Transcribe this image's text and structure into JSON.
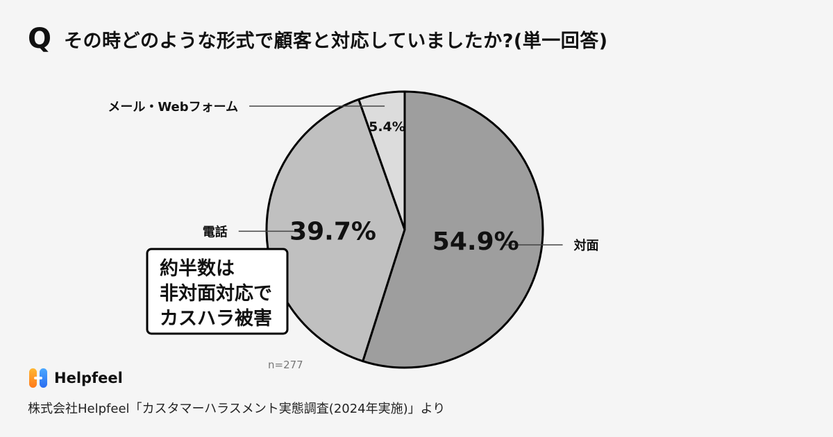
{
  "title": {
    "q_mark": "Q",
    "text": "その時どのような形式で顧客と対応していましたか?(単一回答)"
  },
  "chart_data": {
    "type": "pie",
    "categories": [
      "対面",
      "電話",
      "メール・Webフォーム"
    ],
    "values": [
      54.9,
      39.7,
      5.4
    ],
    "value_labels": [
      "54.9%",
      "39.7%",
      "5.4%"
    ],
    "colors": [
      "#9e9e9e",
      "#c0c0c0",
      "#dcdcdc"
    ],
    "sample_size": "n=277"
  },
  "callout": {
    "lines": [
      "約半数は",
      "非対面対応で",
      "カスハラ被害"
    ]
  },
  "footer": {
    "brand": "Helpfeel",
    "source": "株式会社Helpfeel「カスタマーハラスメント実態調査(2024年実施)」より"
  }
}
